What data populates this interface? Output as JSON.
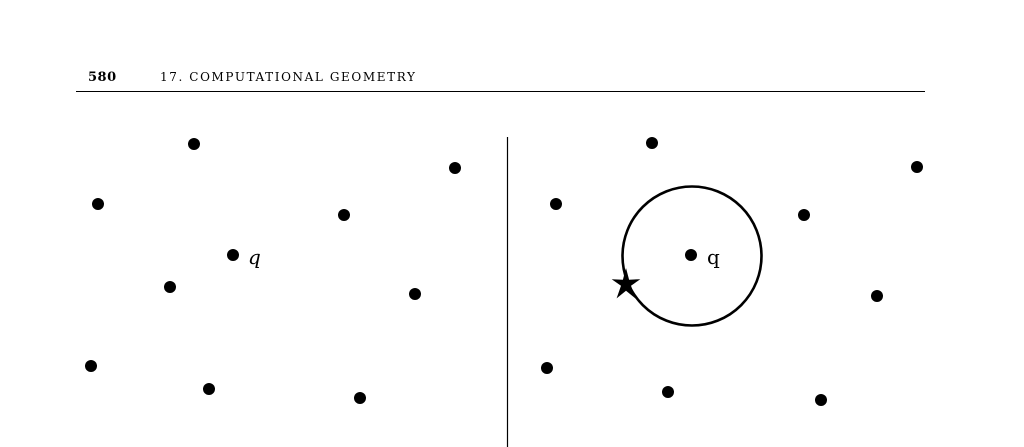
{
  "header": {
    "page_number": "580",
    "chapter_title": "17.  COMPUTATIONAL GEOMETRY"
  },
  "figure": {
    "left_panel": {
      "query_label": "q"
    },
    "right_panel": {
      "query_label": "q"
    }
  }
}
